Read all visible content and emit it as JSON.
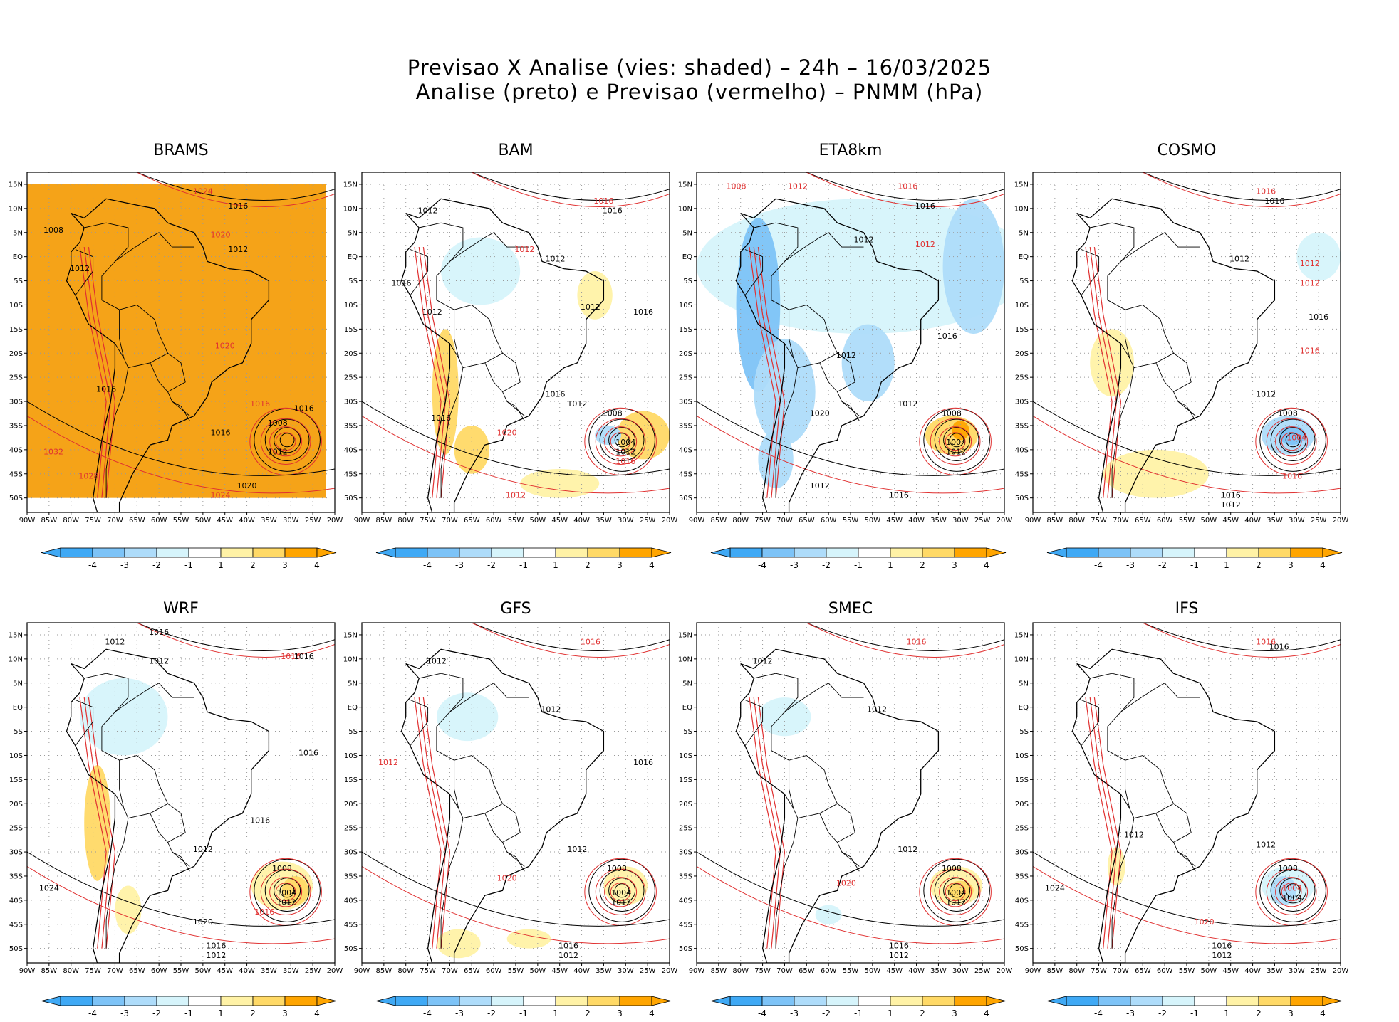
{
  "title": {
    "line1": "Previsao X Analise (vies: shaded) – 24h – 16/03/2025",
    "line2": "Analise (preto) e Previsao (vermelho) – PNMM (hPa)"
  },
  "lat_labels": [
    "15N",
    "10N",
    "5N",
    "EQ",
    "5S",
    "10S",
    "15S",
    "20S",
    "25S",
    "30S",
    "35S",
    "40S",
    "45S",
    "50S"
  ],
  "lon_labels": [
    "90W",
    "85W",
    "80W",
    "75W",
    "70W",
    "65W",
    "60W",
    "55W",
    "50W",
    "45W",
    "40W",
    "35W",
    "30W",
    "25W",
    "20W"
  ],
  "colorbar": {
    "labels": [
      "-4",
      "-3",
      "-2",
      "-1",
      "1",
      "2",
      "3",
      "4"
    ],
    "colors": [
      "#3fa9f5",
      "#7dc3f7",
      "#aedcfa",
      "#d6f4fb",
      "#ffffff",
      "#fff2a6",
      "#ffd966",
      "#ffa500"
    ]
  },
  "colors": {
    "analysis_contour": "#000000",
    "forecast_contour": "#e03030",
    "grid": "#9a9a9a"
  },
  "models": [
    {
      "name": "BRAMS",
      "fill": "#f5a318",
      "blobs": [],
      "isobars": [
        {
          "text": "1016",
          "lon": -42,
          "lat": 10,
          "c": "black"
        },
        {
          "text": "1024",
          "lon": -50,
          "lat": 13,
          "c": "red"
        },
        {
          "text": "1008",
          "lon": -84,
          "lat": 5,
          "c": "black"
        },
        {
          "text": "1012",
          "lon": -42,
          "lat": 1,
          "c": "black"
        },
        {
          "text": "1012",
          "lon": -78,
          "lat": -3,
          "c": "black"
        },
        {
          "text": "1020",
          "lon": -46,
          "lat": 4,
          "c": "red"
        },
        {
          "text": "1016",
          "lon": -37,
          "lat": -31,
          "c": "red"
        },
        {
          "text": "1016",
          "lon": -27,
          "lat": -32,
          "c": "black"
        },
        {
          "text": "1008",
          "lon": -33,
          "lat": -35,
          "c": "black"
        },
        {
          "text": "1012",
          "lon": -33,
          "lat": -41,
          "c": "black"
        },
        {
          "text": "1016",
          "lon": -46,
          "lat": -37,
          "c": "black"
        },
        {
          "text": "1020",
          "lon": -45,
          "lat": -19,
          "c": "red"
        },
        {
          "text": "1016",
          "lon": -72,
          "lat": -28,
          "c": "black"
        },
        {
          "text": "1032",
          "lon": -84,
          "lat": -41,
          "c": "red"
        },
        {
          "text": "1028",
          "lon": -76,
          "lat": -46,
          "c": "red"
        },
        {
          "text": "1020",
          "lon": -40,
          "lat": -48,
          "c": "black"
        },
        {
          "text": "1024",
          "lon": -46,
          "lat": -50,
          "c": "red"
        }
      ]
    },
    {
      "name": "BAM",
      "fill": "none",
      "blobs": [
        {
          "lon": -63,
          "lat": -3,
          "rx": 9,
          "ry": 7,
          "c": "#d6f4fb"
        },
        {
          "lon": -71,
          "lat": -28,
          "rx": 3,
          "ry": 13,
          "c": "#ffd966"
        },
        {
          "lon": -65,
          "lat": -40,
          "rx": 4,
          "ry": 5,
          "c": "#ffd966"
        },
        {
          "lon": -37,
          "lat": -8,
          "rx": 4,
          "ry": 5,
          "c": "#fff2a6"
        },
        {
          "lon": -26,
          "lat": -37,
          "rx": 6,
          "ry": 5,
          "c": "#ffd966"
        },
        {
          "lon": -34,
          "lat": -37,
          "rx": 3,
          "ry": 2,
          "c": "#aedcfa"
        },
        {
          "lon": -45,
          "lat": -47,
          "rx": 9,
          "ry": 3,
          "c": "#fff2a6"
        }
      ],
      "isobars": [
        {
          "text": "1016",
          "lon": -35,
          "lat": 11,
          "c": "red"
        },
        {
          "text": "1016",
          "lon": -33,
          "lat": 9,
          "c": "black"
        },
        {
          "text": "1012",
          "lon": -75,
          "lat": 9,
          "c": "black"
        },
        {
          "text": "1012",
          "lon": -53,
          "lat": 1,
          "c": "red"
        },
        {
          "text": "1012",
          "lon": -46,
          "lat": -1,
          "c": "black"
        },
        {
          "text": "1016",
          "lon": -81,
          "lat": -6,
          "c": "black"
        },
        {
          "text": "1012",
          "lon": -74,
          "lat": -12,
          "c": "black"
        },
        {
          "text": "1016",
          "lon": -26,
          "lat": -12,
          "c": "black"
        },
        {
          "text": "1012",
          "lon": -38,
          "lat": -11,
          "c": "black"
        },
        {
          "text": "1016",
          "lon": -46,
          "lat": -29,
          "c": "black"
        },
        {
          "text": "1012",
          "lon": -41,
          "lat": -31,
          "c": "black"
        },
        {
          "text": "1008",
          "lon": -33,
          "lat": -33,
          "c": "black"
        },
        {
          "text": "1004",
          "lon": -30,
          "lat": -39,
          "c": "black"
        },
        {
          "text": "1012",
          "lon": -30,
          "lat": -41,
          "c": "black"
        },
        {
          "text": "1016",
          "lon": -30,
          "lat": -43,
          "c": "red"
        },
        {
          "text": "1020",
          "lon": -57,
          "lat": -37,
          "c": "red"
        },
        {
          "text": "1016",
          "lon": -72,
          "lat": -34,
          "c": "black"
        },
        {
          "text": "1012",
          "lon": -55,
          "lat": -50,
          "c": "red"
        }
      ]
    },
    {
      "name": "ETA8km",
      "fill": "none",
      "blobs": [
        {
          "lon": -52,
          "lat": -2,
          "rx": 38,
          "ry": 14,
          "c": "#d6f4fb"
        },
        {
          "lon": -27,
          "lat": -2,
          "rx": 7,
          "ry": 14,
          "c": "#aedcfa"
        },
        {
          "lon": -76,
          "lat": -10,
          "rx": 5,
          "ry": 18,
          "c": "#7dc3f7"
        },
        {
          "lon": -70,
          "lat": -28,
          "rx": 7,
          "ry": 11,
          "c": "#aedcfa"
        },
        {
          "lon": -51,
          "lat": -22,
          "rx": 6,
          "ry": 8,
          "c": "#aedcfa"
        },
        {
          "lon": -72,
          "lat": -42,
          "rx": 4,
          "ry": 6,
          "c": "#aedcfa"
        },
        {
          "lon": -32,
          "lat": -37,
          "rx": 6,
          "ry": 4,
          "c": "#ffd966"
        },
        {
          "lon": -30,
          "lat": -36,
          "rx": 2,
          "ry": 2,
          "c": "#ffa500"
        }
      ],
      "isobars": [
        {
          "text": "1008",
          "lon": -81,
          "lat": 14,
          "c": "red"
        },
        {
          "text": "1012",
          "lon": -67,
          "lat": 14,
          "c": "red"
        },
        {
          "text": "1016",
          "lon": -42,
          "lat": 14,
          "c": "red"
        },
        {
          "text": "1016",
          "lon": -38,
          "lat": 10,
          "c": "black"
        },
        {
          "text": "1012",
          "lon": -52,
          "lat": 3,
          "c": "black"
        },
        {
          "text": "1012",
          "lon": -38,
          "lat": 2,
          "c": "red"
        },
        {
          "text": "1016",
          "lon": -33,
          "lat": -17,
          "c": "black"
        },
        {
          "text": "1012",
          "lon": -56,
          "lat": -21,
          "c": "black"
        },
        {
          "text": "1012",
          "lon": -42,
          "lat": -31,
          "c": "black"
        },
        {
          "text": "1008",
          "lon": -32,
          "lat": -33,
          "c": "black"
        },
        {
          "text": "1004",
          "lon": -31,
          "lat": -39,
          "c": "black"
        },
        {
          "text": "1012",
          "lon": -31,
          "lat": -41,
          "c": "black"
        },
        {
          "text": "1020",
          "lon": -62,
          "lat": -33,
          "c": "black"
        },
        {
          "text": "1016",
          "lon": -44,
          "lat": -50,
          "c": "black"
        },
        {
          "text": "1012",
          "lon": -62,
          "lat": -48,
          "c": "black"
        }
      ]
    },
    {
      "name": "COSMO",
      "fill": "none",
      "blobs": [
        {
          "lon": -25,
          "lat": 0,
          "rx": 5,
          "ry": 5,
          "c": "#d6f4fb"
        },
        {
          "lon": -72,
          "lat": -22,
          "rx": 5,
          "ry": 7,
          "c": "#fff2a6"
        },
        {
          "lon": -62,
          "lat": -45,
          "rx": 12,
          "ry": 5,
          "c": "#fff2a6"
        },
        {
          "lon": -32,
          "lat": -37,
          "rx": 6,
          "ry": 4,
          "c": "#aedcfa"
        },
        {
          "lon": -31,
          "lat": -37,
          "rx": 3,
          "ry": 2,
          "c": "#7dc3f7"
        }
      ],
      "isobars": [
        {
          "text": "1016",
          "lon": -37,
          "lat": 13,
          "c": "red"
        },
        {
          "text": "1016",
          "lon": -35,
          "lat": 11,
          "c": "black"
        },
        {
          "text": "1012",
          "lon": -43,
          "lat": -1,
          "c": "black"
        },
        {
          "text": "1012",
          "lon": -27,
          "lat": -2,
          "c": "red"
        },
        {
          "text": "1012",
          "lon": -27,
          "lat": -6,
          "c": "red"
        },
        {
          "text": "1016",
          "lon": -25,
          "lat": -13,
          "c": "black"
        },
        {
          "text": "1012",
          "lon": -37,
          "lat": -29,
          "c": "black"
        },
        {
          "text": "1008",
          "lon": -32,
          "lat": -33,
          "c": "black"
        },
        {
          "text": "1004",
          "lon": -30,
          "lat": -38,
          "c": "red"
        },
        {
          "text": "1016",
          "lon": -31,
          "lat": -46,
          "c": "red"
        },
        {
          "text": "1016",
          "lon": -27,
          "lat": -20,
          "c": "red"
        },
        {
          "text": "1016",
          "lon": -45,
          "lat": -50,
          "c": "black"
        },
        {
          "text": "1012",
          "lon": -45,
          "lat": -52,
          "c": "black"
        }
      ]
    },
    {
      "name": "WRF",
      "fill": "none",
      "blobs": [
        {
          "lon": -68,
          "lat": -2,
          "rx": 10,
          "ry": 8,
          "c": "#d6f4fb"
        },
        {
          "lon": -74,
          "lat": -24,
          "rx": 3,
          "ry": 12,
          "c": "#ffd966"
        },
        {
          "lon": -67,
          "lat": -42,
          "rx": 3,
          "ry": 5,
          "c": "#fff2a6"
        },
        {
          "lon": -32,
          "lat": -37,
          "rx": 7,
          "ry": 5,
          "c": "#fff2a6"
        },
        {
          "lon": -29,
          "lat": -38,
          "rx": 3,
          "ry": 3,
          "c": "#ffd966"
        }
      ],
      "isobars": [
        {
          "text": "1016",
          "lon": -60,
          "lat": 15,
          "c": "black"
        },
        {
          "text": "1016",
          "lon": -30,
          "lat": 10,
          "c": "red"
        },
        {
          "text": "1016",
          "lon": -27,
          "lat": 10,
          "c": "black"
        },
        {
          "text": "1012",
          "lon": -70,
          "lat": 13,
          "c": "black"
        },
        {
          "text": "1012",
          "lon": -60,
          "lat": 9,
          "c": "black"
        },
        {
          "text": "1016",
          "lon": -26,
          "lat": -10,
          "c": "black"
        },
        {
          "text": "1016",
          "lon": -37,
          "lat": -24,
          "c": "black"
        },
        {
          "text": "1012",
          "lon": -50,
          "lat": -30,
          "c": "black"
        },
        {
          "text": "1008",
          "lon": -32,
          "lat": -34,
          "c": "black"
        },
        {
          "text": "1004",
          "lon": -31,
          "lat": -39,
          "c": "black"
        },
        {
          "text": "1012",
          "lon": -31,
          "lat": -41,
          "c": "black"
        },
        {
          "text": "1016",
          "lon": -36,
          "lat": -43,
          "c": "red"
        },
        {
          "text": "1024",
          "lon": -85,
          "lat": -38,
          "c": "black"
        },
        {
          "text": "1020",
          "lon": -50,
          "lat": -45,
          "c": "black"
        },
        {
          "text": "1016",
          "lon": -47,
          "lat": -50,
          "c": "black"
        },
        {
          "text": "1012",
          "lon": -47,
          "lat": -52,
          "c": "black"
        }
      ]
    },
    {
      "name": "GFS",
      "fill": "none",
      "blobs": [
        {
          "lon": -66,
          "lat": -2,
          "rx": 7,
          "ry": 5,
          "c": "#d6f4fb"
        },
        {
          "lon": -68,
          "lat": -49,
          "rx": 5,
          "ry": 3,
          "c": "#fff2a6"
        },
        {
          "lon": -52,
          "lat": -48,
          "rx": 5,
          "ry": 2,
          "c": "#fff2a6"
        },
        {
          "lon": -30,
          "lat": -37,
          "rx": 5,
          "ry": 4,
          "c": "#fff2a6"
        }
      ],
      "isobars": [
        {
          "text": "1016",
          "lon": -38,
          "lat": 13,
          "c": "red"
        },
        {
          "text": "1012",
          "lon": -73,
          "lat": 9,
          "c": "black"
        },
        {
          "text": "1012",
          "lon": -47,
          "lat": -1,
          "c": "black"
        },
        {
          "text": "1016",
          "lon": -26,
          "lat": -12,
          "c": "black"
        },
        {
          "text": "1012",
          "lon": -84,
          "lat": -12,
          "c": "red"
        },
        {
          "text": "1012",
          "lon": -41,
          "lat": -30,
          "c": "black"
        },
        {
          "text": "1008",
          "lon": -32,
          "lat": -34,
          "c": "black"
        },
        {
          "text": "1004",
          "lon": -31,
          "lat": -39,
          "c": "black"
        },
        {
          "text": "1012",
          "lon": -31,
          "lat": -41,
          "c": "black"
        },
        {
          "text": "1020",
          "lon": -57,
          "lat": -36,
          "c": "red"
        },
        {
          "text": "1016",
          "lon": -43,
          "lat": -50,
          "c": "black"
        },
        {
          "text": "1012",
          "lon": -43,
          "lat": -52,
          "c": "black"
        }
      ]
    },
    {
      "name": "SMEC",
      "fill": "none",
      "blobs": [
        {
          "lon": -70,
          "lat": -2,
          "rx": 6,
          "ry": 4,
          "c": "#d6f4fb"
        },
        {
          "lon": -60,
          "lat": -43,
          "rx": 3,
          "ry": 2,
          "c": "#d6f4fb"
        },
        {
          "lon": -31,
          "lat": -37,
          "rx": 6,
          "ry": 4,
          "c": "#fff2a6"
        },
        {
          "lon": -30,
          "lat": -38,
          "rx": 3,
          "ry": 2,
          "c": "#ffd966"
        }
      ],
      "isobars": [
        {
          "text": "1016",
          "lon": -40,
          "lat": 13,
          "c": "red"
        },
        {
          "text": "1012",
          "lon": -75,
          "lat": 9,
          "c": "black"
        },
        {
          "text": "1012",
          "lon": -49,
          "lat": -1,
          "c": "black"
        },
        {
          "text": "1012",
          "lon": -42,
          "lat": -30,
          "c": "black"
        },
        {
          "text": "1008",
          "lon": -32,
          "lat": -34,
          "c": "black"
        },
        {
          "text": "1004",
          "lon": -31,
          "lat": -39,
          "c": "black"
        },
        {
          "text": "1012",
          "lon": -31,
          "lat": -41,
          "c": "black"
        },
        {
          "text": "1020",
          "lon": -56,
          "lat": -37,
          "c": "red"
        },
        {
          "text": "1016",
          "lon": -44,
          "lat": -50,
          "c": "black"
        },
        {
          "text": "1012",
          "lon": -44,
          "lat": -52,
          "c": "black"
        }
      ]
    },
    {
      "name": "IFS",
      "fill": "none",
      "blobs": [
        {
          "lon": -32,
          "lat": -37,
          "rx": 6,
          "ry": 4,
          "c": "#d6f4fb"
        },
        {
          "lon": -33,
          "lat": -38,
          "rx": 3,
          "ry": 3,
          "c": "#aedcfa"
        },
        {
          "lon": -71,
          "lat": -33,
          "rx": 2,
          "ry": 4,
          "c": "#fff2a6"
        }
      ],
      "isobars": [
        {
          "text": "1016",
          "lon": -37,
          "lat": 13,
          "c": "red"
        },
        {
          "text": "1016",
          "lon": -34,
          "lat": 12,
          "c": "black"
        },
        {
          "text": "1012",
          "lon": -67,
          "lat": -27,
          "c": "black"
        },
        {
          "text": "1012",
          "lon": -37,
          "lat": -29,
          "c": "black"
        },
        {
          "text": "1008",
          "lon": -32,
          "lat": -34,
          "c": "black"
        },
        {
          "text": "1004",
          "lon": -31,
          "lat": -38,
          "c": "red"
        },
        {
          "text": "1004",
          "lon": -31,
          "lat": -40,
          "c": "black"
        },
        {
          "text": "1024",
          "lon": -85,
          "lat": -38,
          "c": "black"
        },
        {
          "text": "1020",
          "lon": -51,
          "lat": -45,
          "c": "red"
        },
        {
          "text": "1016",
          "lon": -47,
          "lat": -50,
          "c": "black"
        },
        {
          "text": "1012",
          "lon": -47,
          "lat": -52,
          "c": "black"
        }
      ]
    }
  ]
}
